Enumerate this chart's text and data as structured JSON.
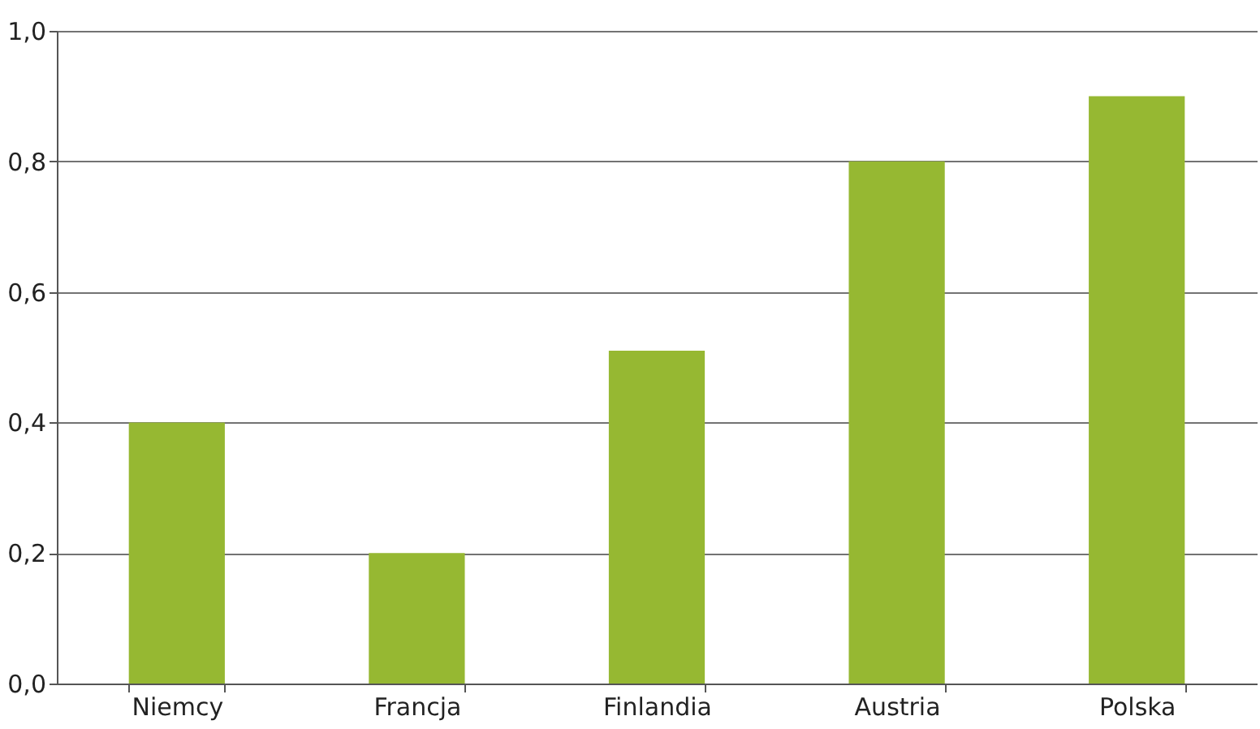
{
  "chart_data": {
    "type": "bar",
    "categories": [
      "Niemcy",
      "Francja",
      "Finlandia",
      "Austria",
      "Polska"
    ],
    "values": [
      0.4,
      0.2,
      0.51,
      0.8,
      0.9
    ],
    "color": "#96b832",
    "ylim": [
      0,
      1
    ],
    "yticks": [
      {
        "value": 0,
        "label": "0,0"
      },
      {
        "value": 0.2,
        "label": "0,2"
      },
      {
        "value": 0.4,
        "label": "0,4"
      },
      {
        "value": 0.6,
        "label": "0,6"
      },
      {
        "value": 0.8,
        "label": "0,8"
      },
      {
        "value": 1,
        "label": "1,0"
      }
    ],
    "grid": "y"
  }
}
